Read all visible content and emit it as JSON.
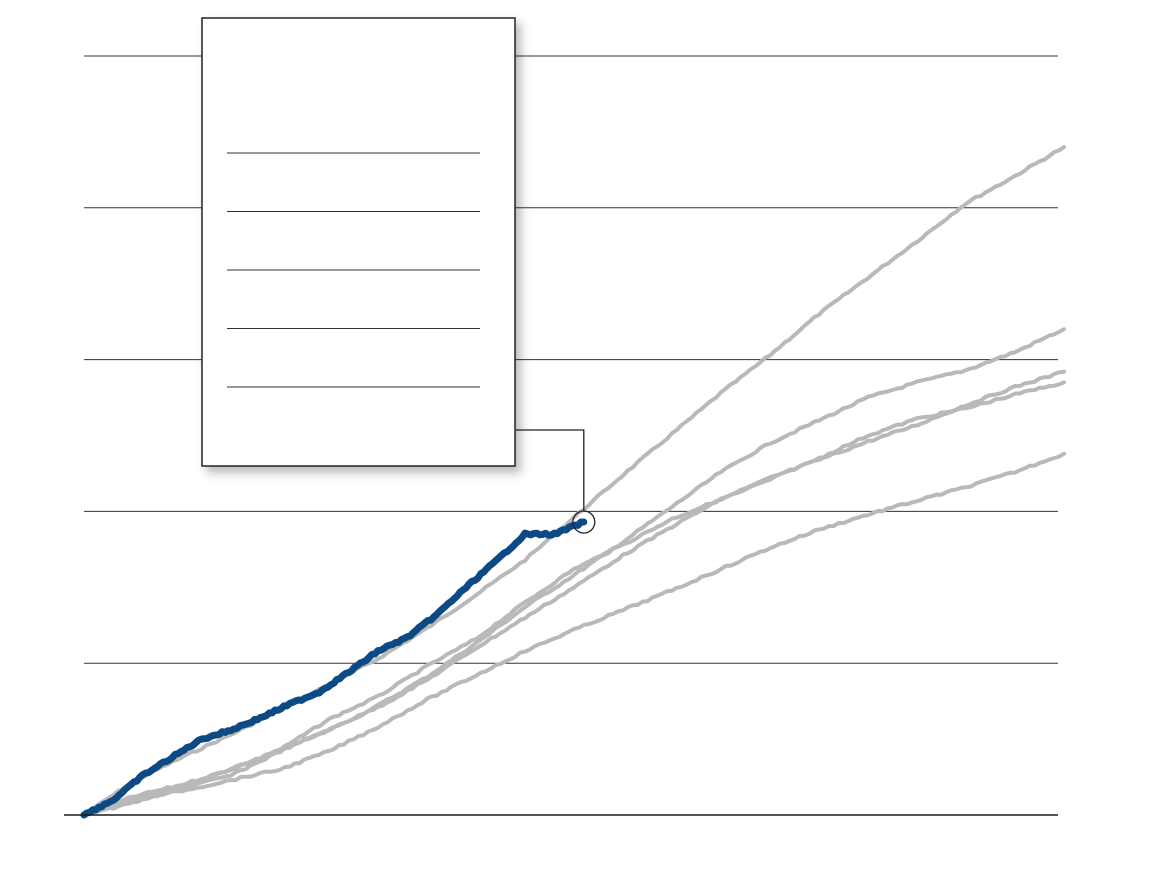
{
  "chart_data": {
    "type": "line",
    "title": "",
    "xlabel": "",
    "ylabel": "",
    "grid": true,
    "xlim": [
      0,
      100
    ],
    "ylim": [
      0,
      5
    ],
    "gridlines_y": [
      1,
      2,
      3,
      4,
      5
    ],
    "legend": {
      "placement": "top-left",
      "entries": [
        "",
        "",
        "",
        "",
        ""
      ]
    },
    "colors": {
      "highlight": "#0d4a85",
      "background_series": "#b9b9b9",
      "grid": "#333333",
      "axis": "#1a1a1a"
    },
    "highlight_series": {
      "name": "",
      "x": [
        0,
        3,
        6,
        9,
        12,
        15,
        18,
        21,
        24,
        27,
        30,
        33,
        36,
        39,
        42,
        45,
        48,
        51
      ],
      "y": [
        0,
        0.1,
        0.26,
        0.38,
        0.5,
        0.56,
        0.64,
        0.73,
        0.81,
        0.94,
        1.08,
        1.17,
        1.32,
        1.5,
        1.67,
        1.85,
        2.08,
        1.93
      ]
    },
    "background_series": [
      {
        "name": "",
        "x": [
          0,
          5,
          10,
          15,
          20,
          25,
          30,
          35,
          40,
          45,
          50,
          55,
          60,
          65,
          70,
          75,
          80,
          85,
          90,
          95,
          100
        ],
        "y": [
          0,
          0.22,
          0.38,
          0.53,
          0.69,
          0.86,
          1.03,
          1.23,
          1.45,
          1.68,
          1.96,
          2.24,
          2.51,
          2.78,
          3.03,
          3.3,
          3.54,
          3.78,
          4.03,
          4.21,
          4.4
        ]
      },
      {
        "name": "",
        "x": [
          0,
          5,
          10,
          15,
          20,
          25,
          30,
          35,
          40,
          45,
          50,
          55,
          60,
          65,
          70,
          75,
          80,
          85,
          90,
          95,
          100
        ],
        "y": [
          0,
          0.08,
          0.18,
          0.3,
          0.43,
          0.56,
          0.72,
          0.91,
          1.13,
          1.37,
          1.58,
          1.8,
          2.03,
          2.26,
          2.45,
          2.6,
          2.75,
          2.85,
          2.93,
          3.05,
          3.2
        ]
      },
      {
        "name": "",
        "x": [
          0,
          5,
          10,
          15,
          20,
          25,
          30,
          35,
          40,
          45,
          50,
          55,
          60,
          65,
          70,
          75,
          80,
          85,
          90,
          95,
          100
        ],
        "y": [
          0,
          0.12,
          0.2,
          0.3,
          0.43,
          0.63,
          0.78,
          0.98,
          1.16,
          1.4,
          1.62,
          1.78,
          1.95,
          2.08,
          2.22,
          2.34,
          2.46,
          2.57,
          2.7,
          2.82,
          2.92
        ]
      },
      {
        "name": "",
        "x": [
          0,
          5,
          10,
          15,
          20,
          25,
          30,
          35,
          40,
          45,
          50,
          55,
          60,
          65,
          70,
          75,
          80,
          85,
          90,
          95,
          100
        ],
        "y": [
          0,
          0.1,
          0.18,
          0.26,
          0.42,
          0.56,
          0.71,
          0.89,
          1.1,
          1.3,
          1.5,
          1.71,
          1.9,
          2.08,
          2.21,
          2.35,
          2.5,
          2.61,
          2.68,
          2.77,
          2.85
        ]
      },
      {
        "name": "",
        "x": [
          0,
          5,
          10,
          15,
          20,
          25,
          30,
          35,
          40,
          45,
          50,
          55,
          60,
          65,
          70,
          75,
          80,
          85,
          90,
          95,
          100
        ],
        "y": [
          0,
          0.1,
          0.16,
          0.23,
          0.3,
          0.42,
          0.58,
          0.76,
          0.92,
          1.08,
          1.22,
          1.35,
          1.48,
          1.62,
          1.76,
          1.88,
          1.98,
          2.07,
          2.16,
          2.26,
          2.38
        ]
      }
    ]
  }
}
